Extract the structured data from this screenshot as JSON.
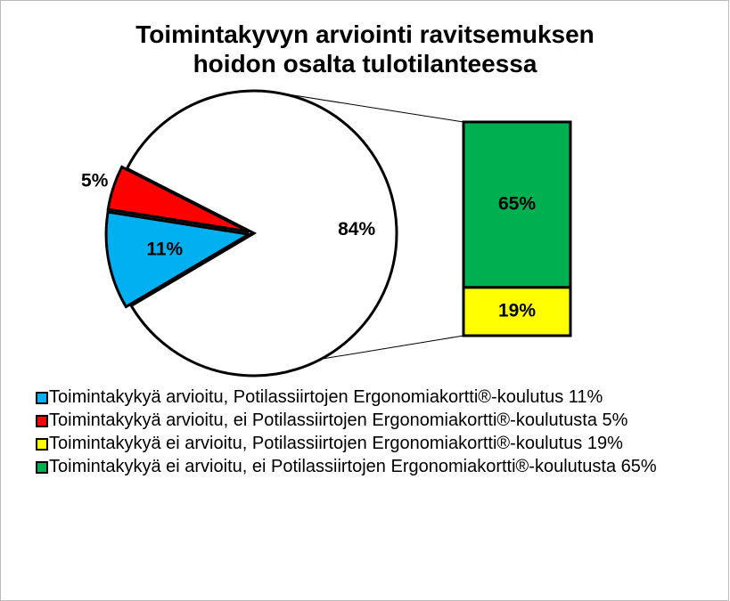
{
  "chart_data": {
    "type": "pie-of-bar",
    "title": "Toimintakyvyn arviointi ravitsemuksen hoidon osalta tulotilanteessa",
    "categories": [
      "Toimintakykyä arvioitu, Potilassiirtojen Ergonomiakortti®-koulutus 11%",
      "Toimintakykyä arvioitu, ei Potilassiirtojen Ergonomiakortti®-koulutusta 5%",
      "Toimintakykyä ei arvioitu, Potilassiirtojen Ergonomiakortti®-koulutus 19%",
      "Toimintakykyä ei arvioitu, ei Potilassiirtojen Ergonomiakortti®-koulutusta 65%"
    ],
    "values": [
      11,
      5,
      19,
      65
    ],
    "value_labels": [
      "11%",
      "5%",
      "19%",
      "65%"
    ],
    "colors": [
      "#00b0f0",
      "#ff0000",
      "#ffff00",
      "#00b050"
    ],
    "in_bar": [
      false,
      false,
      true,
      true
    ],
    "other_value": 84,
    "other_label": "84%",
    "other_color": "#ffffff"
  }
}
